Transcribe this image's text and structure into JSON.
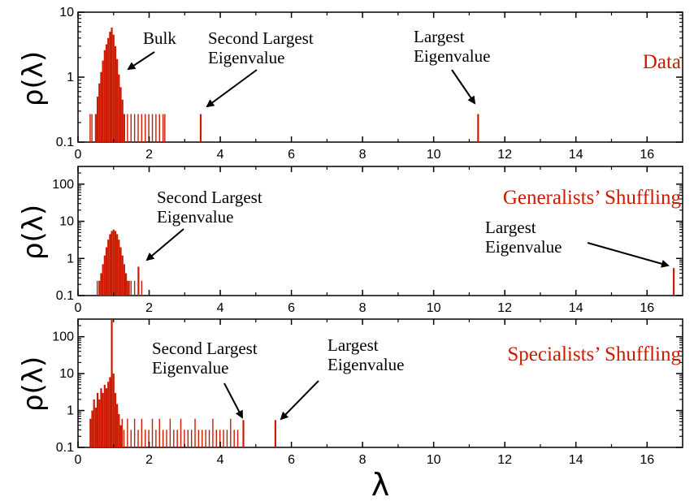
{
  "colors": {
    "accent": "#cc1a00",
    "axis": "#000000"
  },
  "x_axis_label": "λ",
  "chart_data": [
    {
      "type": "bar",
      "title": "Data",
      "ylabel": "ρ(λ)",
      "xlabel": "λ",
      "xlim": [
        0,
        17
      ],
      "ylim": [
        0.1,
        10
      ],
      "yscale": "log",
      "x_ticks": [
        "0",
        "2",
        "4",
        "6",
        "8",
        "10",
        "12",
        "14",
        "16"
      ],
      "y_ticks": [
        "0.1",
        "1",
        "10"
      ],
      "grid": false,
      "legend": "none",
      "bulk": {
        "x": [
          0.5,
          0.55,
          0.6,
          0.65,
          0.7,
          0.75,
          0.8,
          0.85,
          0.9,
          0.95,
          1.0,
          1.05,
          1.1,
          1.15,
          1.2,
          1.25,
          1.3
        ],
        "y": [
          0.27,
          0.5,
          0.8,
          1.2,
          1.8,
          2.6,
          3.2,
          4.0,
          5.0,
          5.8,
          4.5,
          3.0,
          1.9,
          1.1,
          0.7,
          0.45,
          0.27
        ]
      },
      "tail": {
        "x": [
          0.35,
          0.4,
          1.4,
          1.5,
          1.6,
          1.7,
          1.8,
          1.9,
          2.0,
          2.1,
          2.2,
          2.3,
          2.4,
          2.45
        ],
        "y": [
          0.27,
          0.27,
          0.27,
          0.27,
          0.27,
          0.27,
          0.27,
          0.27,
          0.27,
          0.27,
          0.27,
          0.27,
          0.27,
          0.27
        ]
      },
      "second_largest": {
        "x": 3.45,
        "y": 0.27
      },
      "largest": {
        "x": 11.25,
        "y": 0.27
      },
      "annotations": [
        {
          "lines": [
            "Bulk"
          ]
        },
        {
          "lines": [
            "Second Largest",
            "Eigenvalue"
          ]
        },
        {
          "lines": [
            "Largest",
            "Eigenvalue"
          ]
        }
      ]
    },
    {
      "type": "bar",
      "title": "Generalists’ Shuffling",
      "ylabel": "ρ(λ)",
      "xlabel": "λ",
      "xlim": [
        0,
        17
      ],
      "ylim": [
        0.1,
        300
      ],
      "yscale": "log",
      "x_ticks": [
        "0",
        "2",
        "4",
        "6",
        "8",
        "10",
        "12",
        "14",
        "16"
      ],
      "y_ticks": [
        "0.1",
        "1",
        "10",
        "100"
      ],
      "grid": false,
      "legend": "none",
      "bulk": {
        "x": [
          0.6,
          0.65,
          0.7,
          0.75,
          0.8,
          0.85,
          0.9,
          0.95,
          1.0,
          1.05,
          1.1,
          1.15,
          1.2,
          1.25,
          1.3,
          1.35,
          1.4
        ],
        "y": [
          0.25,
          0.4,
          0.7,
          1.2,
          2.0,
          3.2,
          4.5,
          5.5,
          6.0,
          5.5,
          4.5,
          3.2,
          2.0,
          1.2,
          0.7,
          0.4,
          0.25
        ]
      },
      "tail": {
        "x": [
          0.55,
          1.45,
          1.5,
          1.6,
          1.8
        ],
        "y": [
          0.25,
          0.25,
          0.25,
          0.25,
          0.25
        ]
      },
      "second_largest": {
        "x": 1.7,
        "y": 0.6
      },
      "largest": {
        "x": 16.75,
        "y": 0.55
      },
      "annotations": [
        {
          "lines": [
            "Second Largest",
            "Eigenvalue"
          ]
        },
        {
          "lines": [
            "Largest",
            "Eigenvalue"
          ]
        }
      ]
    },
    {
      "type": "bar",
      "title": "Specialists’ Shuffling",
      "ylabel": "ρ(λ)",
      "xlabel": "λ",
      "xlim": [
        0,
        17
      ],
      "ylim": [
        0.1,
        300
      ],
      "yscale": "log",
      "x_ticks": [
        "0",
        "2",
        "4",
        "6",
        "8",
        "10",
        "12",
        "14",
        "16"
      ],
      "y_ticks": [
        "0.1",
        "1",
        "10",
        "100"
      ],
      "grid": false,
      "legend": "none",
      "bulk": {
        "x": [
          0.35,
          0.4,
          0.45,
          0.5,
          0.55,
          0.6,
          0.65,
          0.7,
          0.75,
          0.8,
          0.85,
          0.9,
          0.95,
          1.0,
          1.05,
          1.1,
          1.15,
          1.2
        ],
        "y": [
          0.6,
          1.0,
          2.0,
          1.2,
          3.0,
          2.0,
          4.0,
          3.0,
          5.0,
          4.0,
          6.0,
          8.0,
          300.0,
          10.0,
          3.0,
          1.5,
          0.8,
          0.4
        ]
      },
      "tail": {
        "x": [
          1.25,
          1.3,
          1.4,
          1.5,
          1.6,
          1.7,
          1.8,
          1.9,
          2.0,
          2.1,
          2.2,
          2.3,
          2.4,
          2.5,
          2.6,
          2.7,
          2.8,
          2.9,
          3.0,
          3.1,
          3.2,
          3.3,
          3.4,
          3.5,
          3.6,
          3.7,
          3.8,
          3.9,
          4.0,
          4.1,
          4.2,
          4.3,
          4.4,
          4.5
        ],
        "y": [
          0.6,
          0.3,
          0.6,
          0.3,
          0.6,
          0.3,
          0.6,
          0.3,
          0.3,
          0.6,
          0.3,
          0.6,
          0.3,
          0.3,
          0.6,
          0.3,
          0.3,
          0.6,
          0.3,
          0.3,
          0.3,
          0.6,
          0.3,
          0.3,
          0.3,
          0.3,
          0.6,
          0.3,
          0.3,
          0.3,
          0.3,
          0.6,
          0.3,
          0.3
        ]
      },
      "second_largest": {
        "x": 4.65,
        "y": 0.55
      },
      "largest": {
        "x": 5.55,
        "y": 0.55
      },
      "annotations": [
        {
          "lines": [
            "Second Largest",
            "Eigenvalue"
          ]
        },
        {
          "lines": [
            "Largest",
            "Eigenvalue"
          ]
        }
      ]
    }
  ]
}
